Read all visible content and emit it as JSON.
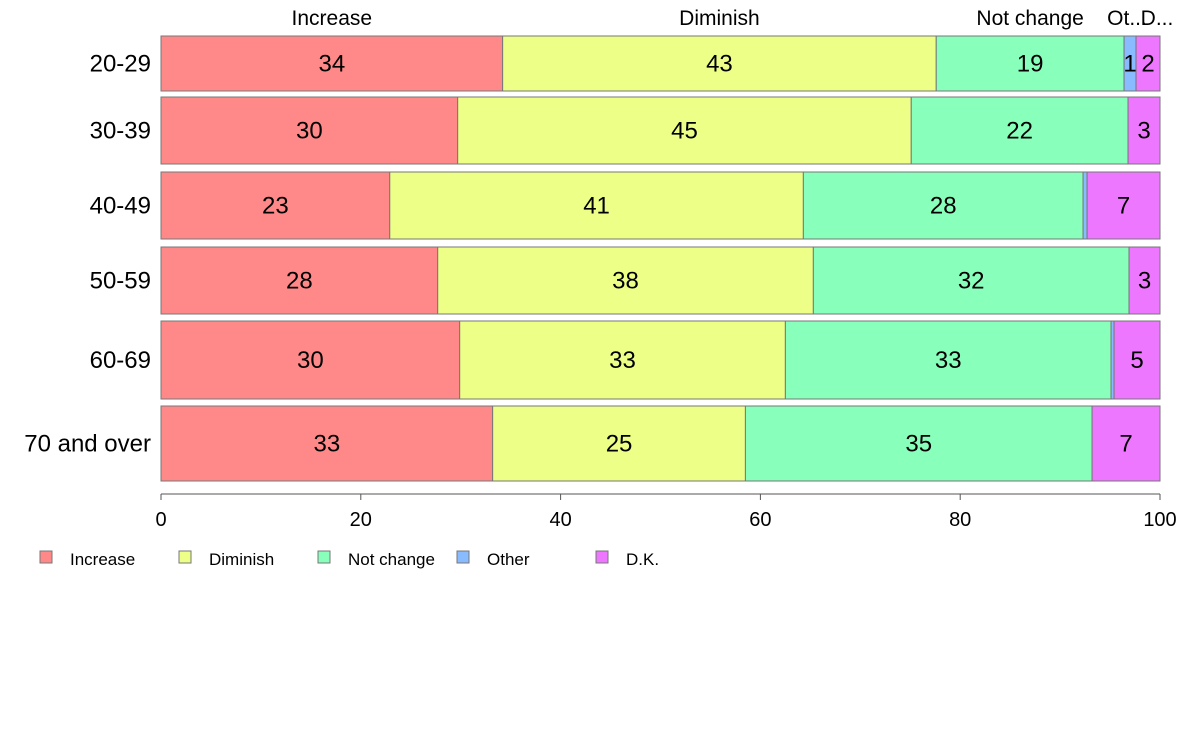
{
  "chart_data": {
    "type": "bar",
    "orientation": "horizontal",
    "stacked": true,
    "categories": [
      "20-29",
      "30-39",
      "40-49",
      "50-59",
      "60-69",
      "70 and over"
    ],
    "series": [
      {
        "name": "Increase",
        "color": "#ff8888",
        "values": [
          34.2,
          29.7,
          22.9,
          27.7,
          29.9,
          33.2
        ]
      },
      {
        "name": "Diminish",
        "color": "#eeff88",
        "values": [
          43.4,
          45.4,
          41.4,
          37.6,
          32.6,
          25.3
        ]
      },
      {
        "name": "Not change",
        "color": "#88ffbb",
        "values": [
          18.8,
          21.7,
          28.0,
          31.6,
          32.6,
          34.7
        ]
      },
      {
        "name": "Other",
        "color": "#88bbff",
        "values": [
          1.2,
          0.0,
          0.4,
          0.0,
          0.3,
          0.0
        ]
      },
      {
        "name": "D.K.",
        "color": "#ee77ff",
        "values": [
          2.4,
          3.2,
          7.3,
          3.1,
          4.6,
          6.8
        ]
      }
    ],
    "data_labels": [
      [
        "34",
        "43",
        "19",
        "1",
        "2"
      ],
      [
        "30",
        "45",
        "22",
        "",
        "3"
      ],
      [
        "23",
        "41",
        "28",
        "",
        "7"
      ],
      [
        "28",
        "38",
        "32",
        "",
        "3"
      ],
      [
        "30",
        "33",
        "33",
        "",
        "5"
      ],
      [
        "33",
        "25",
        "35",
        "",
        "7"
      ]
    ],
    "top_labels": [
      "Increase",
      "Diminish",
      "Not change",
      "Ot...",
      "D..."
    ],
    "xlim": [
      0,
      100
    ],
    "xticks": [
      0,
      20,
      40,
      60,
      80,
      100
    ],
    "xtick_labels": [
      "0",
      "20",
      "40",
      "60",
      "80",
      "100"
    ],
    "title": "",
    "xlabel": "",
    "ylabel": "",
    "grid": false,
    "legend": {
      "position": "bottom",
      "entries": [
        "Increase",
        "Diminish",
        "Not change",
        "Other",
        "D.K."
      ]
    }
  }
}
